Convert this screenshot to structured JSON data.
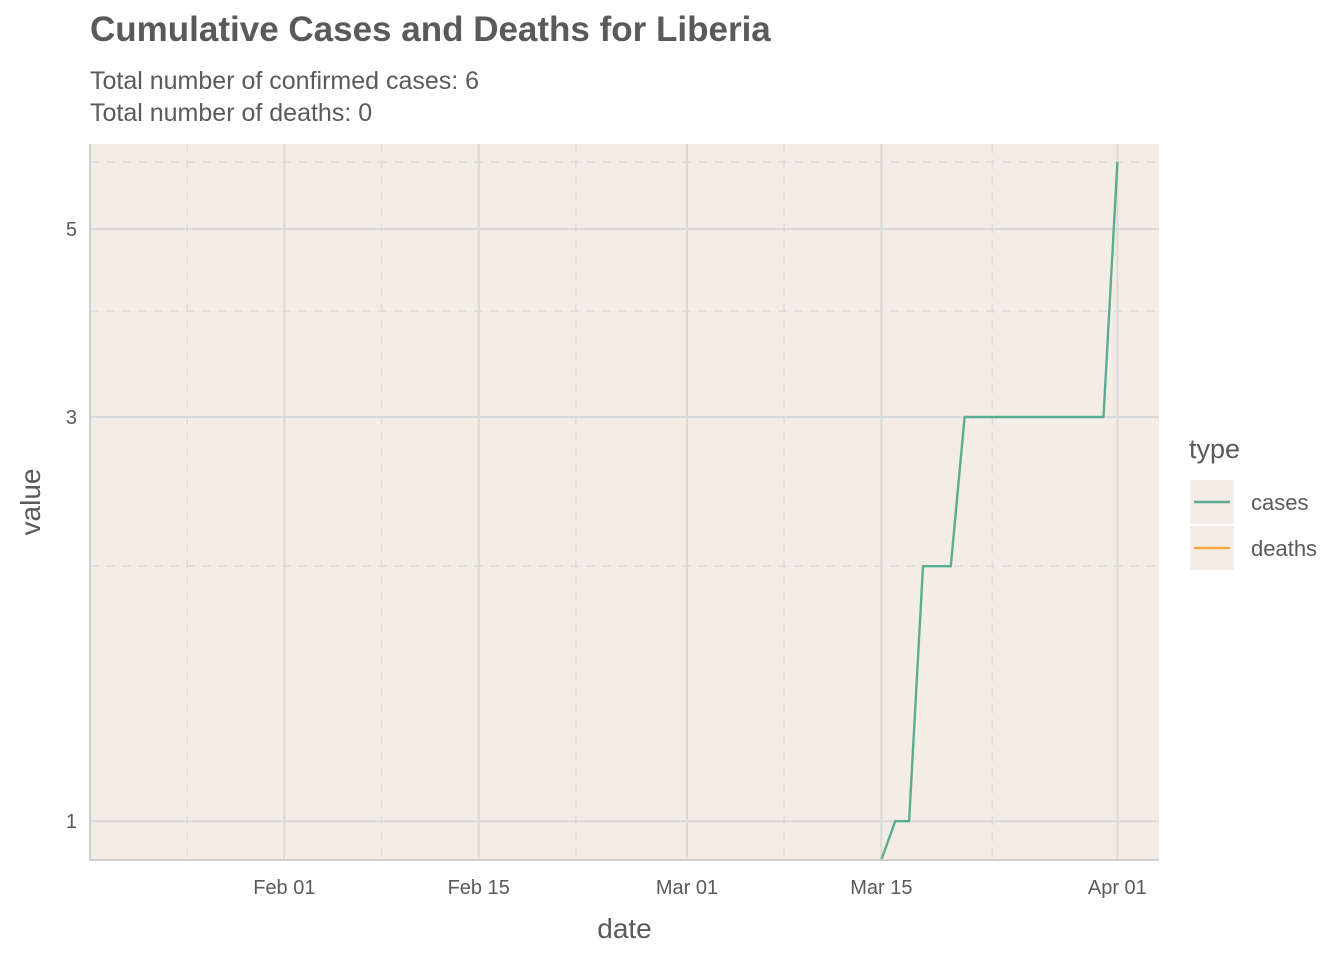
{
  "chart_data": {
    "type": "line",
    "title": "Cumulative Cases and Deaths for Liberia",
    "subtitle_lines": [
      "Total number of confirmed cases: 6",
      "Total number of deaths: 0"
    ],
    "xlabel": "date",
    "ylabel": "value",
    "x_ticks": [
      {
        "date": "2020-02-01",
        "label": "Feb 01"
      },
      {
        "date": "2020-02-15",
        "label": "Feb 15"
      },
      {
        "date": "2020-03-01",
        "label": "Mar 01"
      },
      {
        "date": "2020-03-15",
        "label": "Mar 15"
      },
      {
        "date": "2020-04-01",
        "label": "Apr 01"
      }
    ],
    "x_minor_ticks": [
      "2020-01-25",
      "2020-02-08",
      "2020-02-22",
      "2020-03-08",
      "2020-03-23"
    ],
    "xlim": [
      "2020-01-18",
      "2020-04-04"
    ],
    "y_scale": "log",
    "ylim": [
      0.9,
      6.3
    ],
    "y_ticks": [
      1,
      3,
      5
    ],
    "y_minor_ticks": [
      2,
      4,
      6
    ],
    "legend": {
      "title": "type",
      "position": "right"
    },
    "grid": true,
    "series": [
      {
        "name": "cases",
        "color": "#5aae8e",
        "points": [
          {
            "x": "2020-03-15",
            "y": 0.9
          },
          {
            "x": "2020-03-16",
            "y": 1
          },
          {
            "x": "2020-03-17",
            "y": 1
          },
          {
            "x": "2020-03-18",
            "y": 2
          },
          {
            "x": "2020-03-19",
            "y": 2
          },
          {
            "x": "2020-03-20",
            "y": 2
          },
          {
            "x": "2020-03-21",
            "y": 3
          },
          {
            "x": "2020-03-22",
            "y": 3
          },
          {
            "x": "2020-03-23",
            "y": 3
          },
          {
            "x": "2020-03-24",
            "y": 3
          },
          {
            "x": "2020-03-25",
            "y": 3
          },
          {
            "x": "2020-03-26",
            "y": 3
          },
          {
            "x": "2020-03-27",
            "y": 3
          },
          {
            "x": "2020-03-28",
            "y": 3
          },
          {
            "x": "2020-03-29",
            "y": 3
          },
          {
            "x": "2020-03-30",
            "y": 3
          },
          {
            "x": "2020-03-31",
            "y": 3
          },
          {
            "x": "2020-04-01",
            "y": 6
          }
        ]
      },
      {
        "name": "deaths",
        "color": "#f5a742",
        "points": []
      }
    ]
  }
}
